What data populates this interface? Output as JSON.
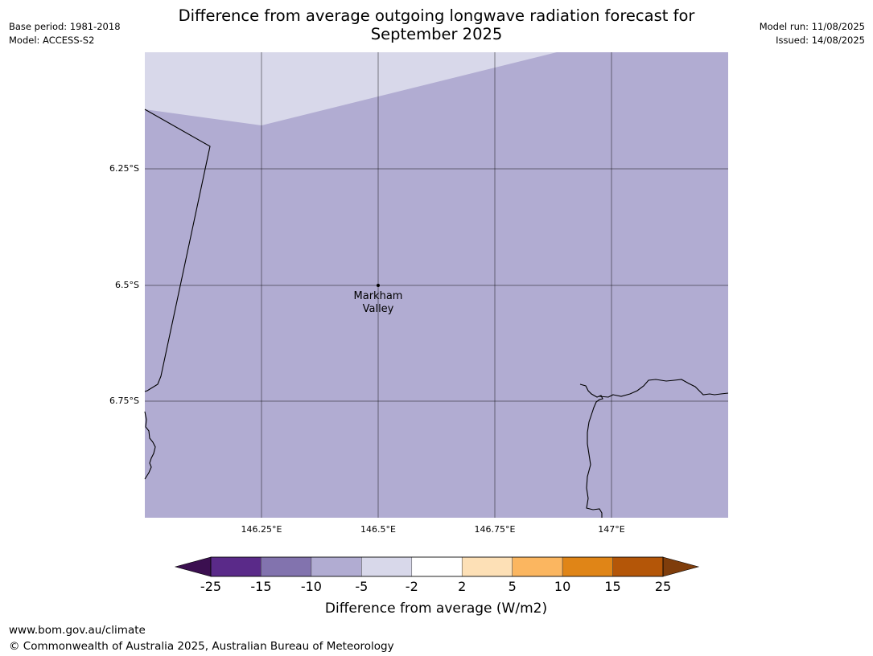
{
  "title": "Difference from average outgoing longwave radiation forecast for September 2025",
  "base_period": "Base period: 1981-2018",
  "model": "Model: ACCESS-S2",
  "model_run": "Model run: 11/08/2025",
  "issued": "Issued: 14/08/2025",
  "map": {
    "lat_labels": [
      "6.25°S",
      "6.5°S",
      "6.75°S"
    ],
    "lon_labels": [
      "146.25°E",
      "146.5°E",
      "146.75°E",
      "147°E"
    ],
    "place": {
      "line1": "Markham",
      "line2": "Valley"
    },
    "fill_colors": {
      "main": "#b1acd2",
      "light": "#d8d8ea"
    }
  },
  "colorbar": {
    "label": "Difference from average (W/m2)",
    "ticks": [
      "-25",
      "-15",
      "-10",
      "-5",
      "-2",
      "2",
      "5",
      "10",
      "15",
      "25"
    ],
    "bins": [
      {
        "range": "< -25",
        "color": "#3b0f50"
      },
      {
        "range": "-25 to -15",
        "color": "#5a2a89"
      },
      {
        "range": "-15 to -10",
        "color": "#8273ae"
      },
      {
        "range": "-10 to -5",
        "color": "#b1acd2"
      },
      {
        "range": "-5 to -2",
        "color": "#d8d8ea"
      },
      {
        "range": "-2 to 2",
        "color": "#ffffff"
      },
      {
        "range": "2 to 5",
        "color": "#fde0b6"
      },
      {
        "range": "5 to 10",
        "color": "#fbb660"
      },
      {
        "range": "10 to 15",
        "color": "#e08517"
      },
      {
        "range": "15 to 25",
        "color": "#b45608"
      },
      {
        "range": "> 25",
        "color": "#7f3d0b"
      }
    ]
  },
  "footer": {
    "url": "www.bom.gov.au/climate",
    "copyright": "© Commonwealth of Australia 2025, Australian Bureau of Meteorology"
  }
}
